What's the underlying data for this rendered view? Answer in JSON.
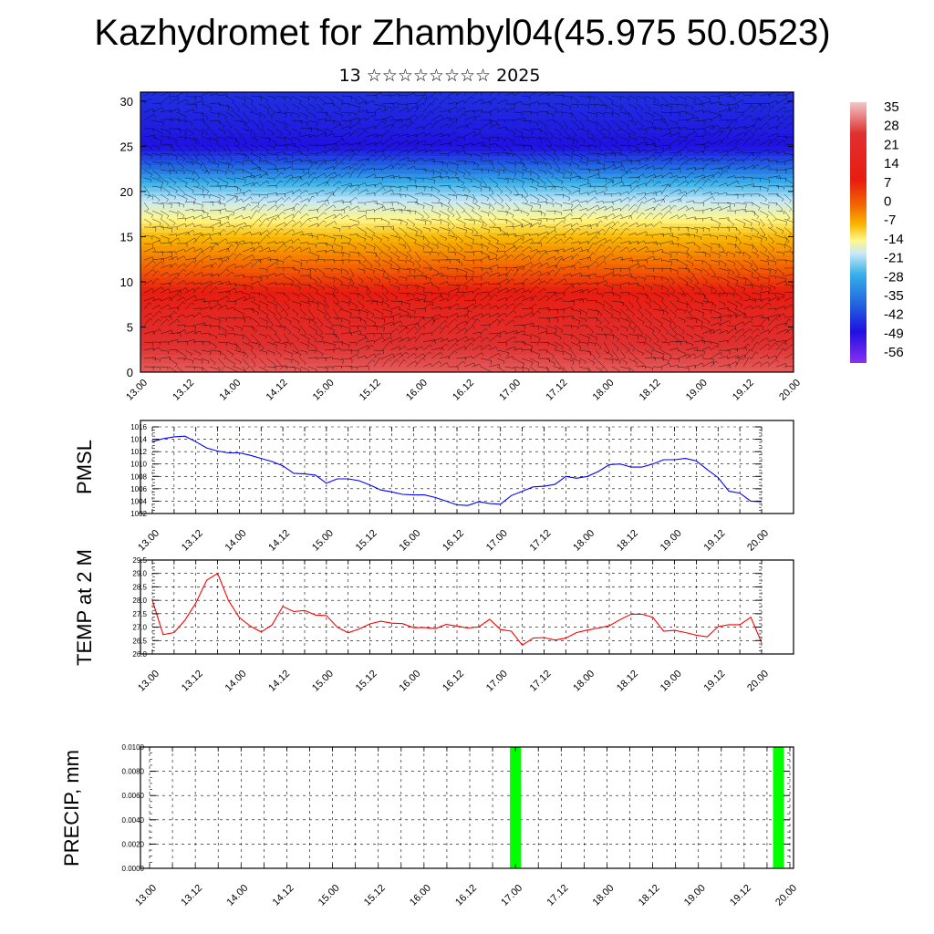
{
  "title": "Kazhydromet for Zhambyl04(45.975 50.0523)",
  "subtitle": "13 ☆☆☆☆☆☆☆☆ 2025",
  "time_labels": [
    "13.00",
    "13.12",
    "14.00",
    "14.12",
    "15.00",
    "15.12",
    "16.00",
    "16.12",
    "17.00",
    "17.12",
    "18.00",
    "18.12",
    "19.00",
    "19.12",
    "20.00"
  ],
  "colors": {
    "pmsl_line": "#0000ff",
    "temp_line": "#ff0000",
    "precip_bar": "#00ff00",
    "wind_barbs": "#000000"
  },
  "chart_data": [
    {
      "type": "heatmap",
      "name": "temperature-wind-cross-section",
      "x_ticks": [
        "13.00",
        "13.12",
        "14.00",
        "14.12",
        "15.00",
        "15.12",
        "16.00",
        "16.12",
        "17.00",
        "17.12",
        "18.00",
        "18.12",
        "19.00",
        "19.12",
        "20.00"
      ],
      "y_ticks": [
        "0",
        "5",
        "10",
        "15",
        "20",
        "25",
        "30"
      ],
      "ylim": [
        0,
        31
      ],
      "colorbar_labels": [
        "35",
        "28",
        "21",
        "14",
        "7",
        "0",
        "-7",
        "-14",
        "-21",
        "-28",
        "-35",
        "-42",
        "-49",
        "-56"
      ],
      "colorbar_range": [
        -60,
        40
      ],
      "profile_level": [
        0,
        3,
        6,
        9,
        12,
        15,
        17,
        19,
        21,
        23,
        25,
        27,
        31
      ],
      "profile_temperature": [
        33,
        30,
        25,
        18,
        8,
        -3,
        -10,
        -18,
        -28,
        -40,
        -52,
        -50,
        -47
      ],
      "overlay": "wind barbs"
    },
    {
      "type": "line",
      "name": "PMSL",
      "ylabel": "PMSL",
      "ylim": [
        1002,
        1016
      ],
      "y_ticks": [
        "1016",
        "1014",
        "1012",
        "1010",
        "1008",
        "1006",
        "1004",
        "1002"
      ],
      "x_ticks": [
        "13.00",
        "13.12",
        "14.00",
        "14.12",
        "15.00",
        "15.12",
        "16.00",
        "16.12",
        "17.00",
        "17.12",
        "18.00",
        "18.12",
        "19.00",
        "19.12",
        "20.00"
      ],
      "series": [
        {
          "x": [
            0,
            3,
            6,
            9,
            12,
            15,
            18,
            21,
            24,
            27,
            30,
            33,
            36,
            39,
            42,
            45,
            48,
            51,
            54,
            57,
            60,
            63,
            66,
            69,
            72,
            75,
            78,
            81,
            84,
            87,
            90,
            93,
            96,
            99,
            102,
            105,
            108,
            111,
            114,
            117,
            120,
            123,
            126,
            129,
            132,
            135,
            138,
            141,
            144,
            147,
            150,
            153,
            156,
            159,
            162,
            165,
            168
          ],
          "values": [
            1013.6,
            1014.1,
            1014.4,
            1014.5,
            1013.6,
            1012.6,
            1012.1,
            1011.8,
            1011.8,
            1011.4,
            1010.9,
            1010.4,
            1009.7,
            1008.5,
            1008.4,
            1008.2,
            1006.9,
            1007.6,
            1007.6,
            1007.3,
            1006.6,
            1005.8,
            1005.5,
            1005.1,
            1005.0,
            1005.0,
            1004.6,
            1004.0,
            1003.4,
            1003.3,
            1003.9,
            1003.6,
            1003.5,
            1004.9,
            1005.6,
            1006.3,
            1006.4,
            1006.7,
            1008.0,
            1007.7,
            1008.0,
            1008.8,
            1009.9,
            1010.0,
            1009.5,
            1009.5,
            1010.0,
            1010.7,
            1010.7,
            1010.9,
            1010.5,
            1009.1,
            1007.8,
            1005.6,
            1005.3,
            1004.0,
            1003.9
          ]
        }
      ]
    },
    {
      "type": "line",
      "name": "TEMP at 2 M",
      "ylabel": "TEMP at 2 M",
      "ylim": [
        26.0,
        29.5
      ],
      "y_ticks": [
        "29.5",
        "29.0",
        "28.5",
        "28.0",
        "27.5",
        "27.0",
        "26.5",
        "26.0"
      ],
      "x_ticks": [
        "13.00",
        "13.12",
        "14.00",
        "14.12",
        "15.00",
        "15.12",
        "16.00",
        "16.12",
        "17.00",
        "17.12",
        "18.00",
        "18.12",
        "19.00",
        "19.12",
        "20.00"
      ],
      "series": [
        {
          "x": [
            0,
            3,
            6,
            9,
            12,
            15,
            18,
            21,
            24,
            27,
            30,
            33,
            36,
            39,
            42,
            45,
            48,
            51,
            54,
            57,
            60,
            63,
            66,
            69,
            72,
            75,
            78,
            81,
            84,
            87,
            90,
            93,
            96,
            99,
            102,
            105,
            108,
            111,
            114,
            117,
            120,
            123,
            126,
            129,
            132,
            135,
            138,
            141,
            144,
            147,
            150,
            153,
            156,
            159,
            162,
            165,
            168
          ],
          "values": [
            28.0,
            26.72,
            26.8,
            27.26,
            27.9,
            28.75,
            29.0,
            27.99,
            27.36,
            27.04,
            26.82,
            27.08,
            27.77,
            27.58,
            27.62,
            27.45,
            27.43,
            27.0,
            26.79,
            26.93,
            27.12,
            27.22,
            27.15,
            27.13,
            26.98,
            26.99,
            26.94,
            27.1,
            27.04,
            26.97,
            27.01,
            27.29,
            26.91,
            26.85,
            26.33,
            26.59,
            26.61,
            26.52,
            26.59,
            26.8,
            26.89,
            26.97,
            27.05,
            27.28,
            27.48,
            27.48,
            27.37,
            26.85,
            26.88,
            26.8,
            26.7,
            26.64,
            27.02,
            27.09,
            27.09,
            27.37,
            26.42
          ]
        }
      ]
    },
    {
      "type": "bar",
      "name": "PRECIP",
      "ylabel": "PRECIP, mm",
      "ylim": [
        0,
        0.01
      ],
      "y_ticks": [
        "0.0100",
        "0.0080",
        "0.0060",
        "0.0040",
        "0.0020",
        "0.0000"
      ],
      "x_ticks": [
        "13.00",
        "13.12",
        "14.00",
        "14.12",
        "15.00",
        "15.12",
        "16.00",
        "16.12",
        "17.00",
        "17.12",
        "18.00",
        "18.12",
        "19.00",
        "19.12",
        "20.00"
      ],
      "bars": [
        {
          "x": 96,
          "value": 0.01
        },
        {
          "x": 165,
          "value": 0.01
        }
      ]
    }
  ]
}
